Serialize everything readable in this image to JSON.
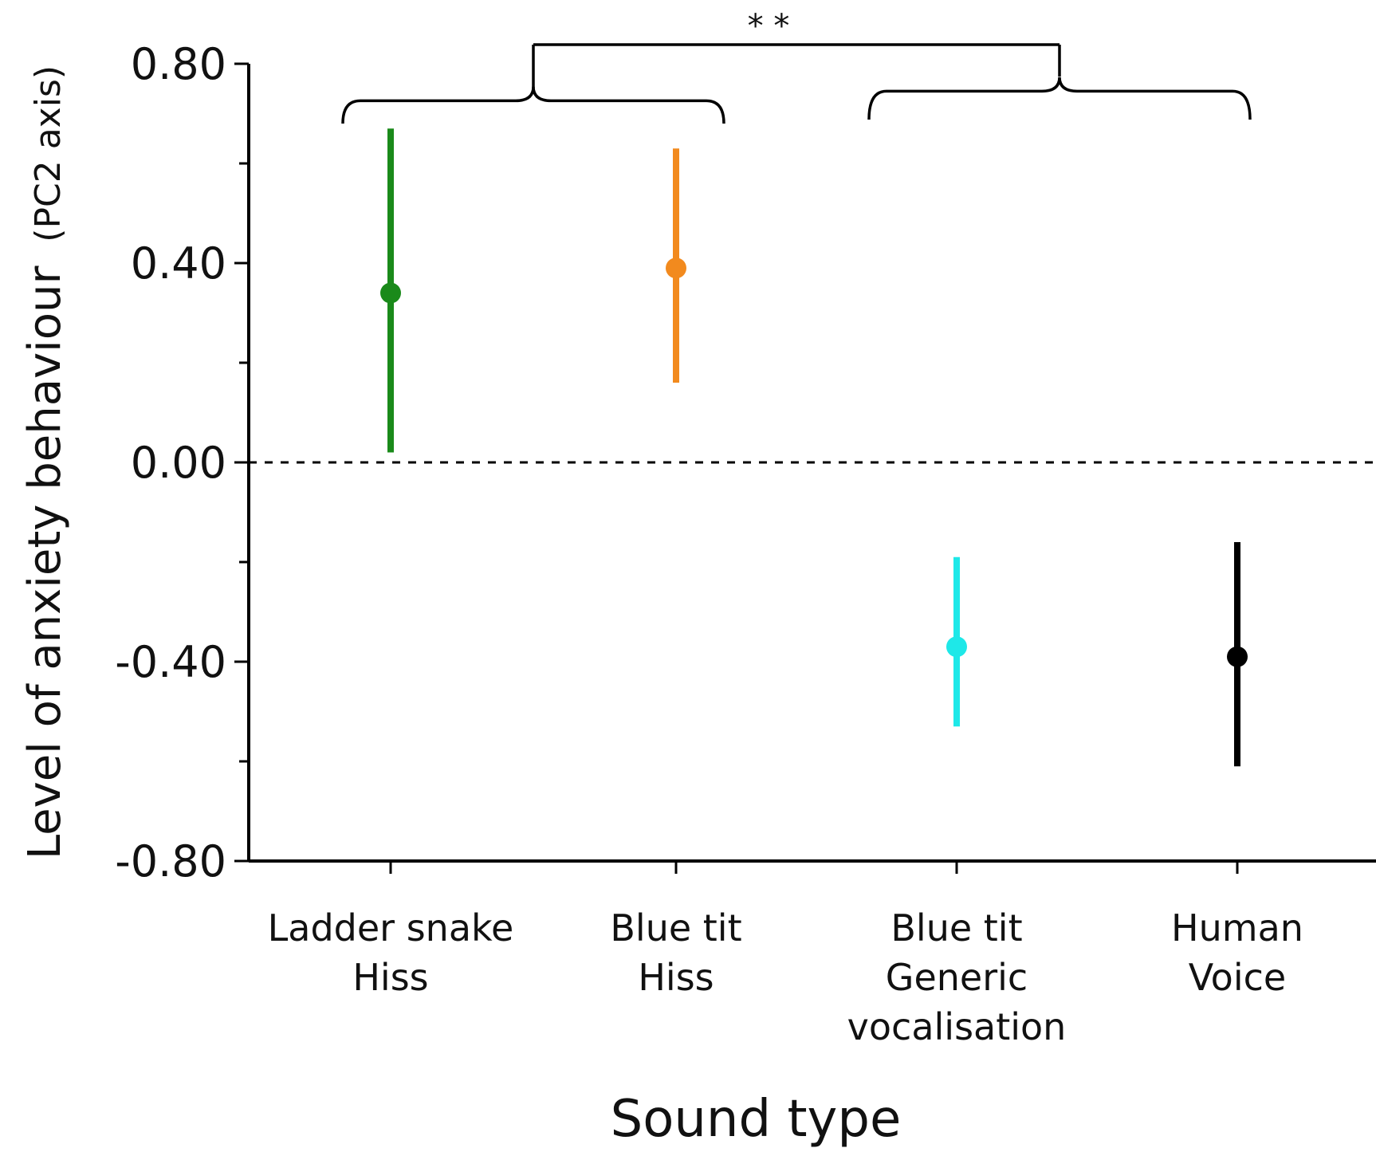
{
  "chart_data": {
    "type": "scatter",
    "title": "",
    "xlabel": "Sound type",
    "ylabel_main": "Level of anxiety behaviour",
    "ylabel_paren": "(PC2 axis)",
    "ylim": [
      -0.8,
      0.8
    ],
    "yticks": [
      0.8,
      0.4,
      0.0,
      -0.4,
      -0.8
    ],
    "ytick_labels": [
      "0.80",
      "0.40",
      "0.00",
      "-0.40",
      "-0.80"
    ],
    "reference_line": 0.0,
    "grid": false,
    "categories": [
      [
        "Ladder snake",
        "Hiss"
      ],
      [
        "Blue tit",
        "Hiss"
      ],
      [
        "Blue tit",
        "Generic",
        "vocalisation"
      ],
      [
        "Human",
        "Voice"
      ]
    ],
    "points": [
      {
        "mean": 0.34,
        "lower": 0.02,
        "upper": 0.67,
        "color": "#1a8a1a"
      },
      {
        "mean": 0.39,
        "lower": 0.16,
        "upper": 0.63,
        "color": "#f28a1e"
      },
      {
        "mean": -0.37,
        "lower": -0.53,
        "upper": -0.19,
        "color": "#1ee8e8"
      },
      {
        "mean": -0.39,
        "lower": -0.61,
        "upper": -0.16,
        "color": "#000000"
      }
    ],
    "significance": {
      "label": "* *",
      "groups": [
        [
          0,
          1
        ],
        [
          2,
          3
        ]
      ]
    }
  }
}
